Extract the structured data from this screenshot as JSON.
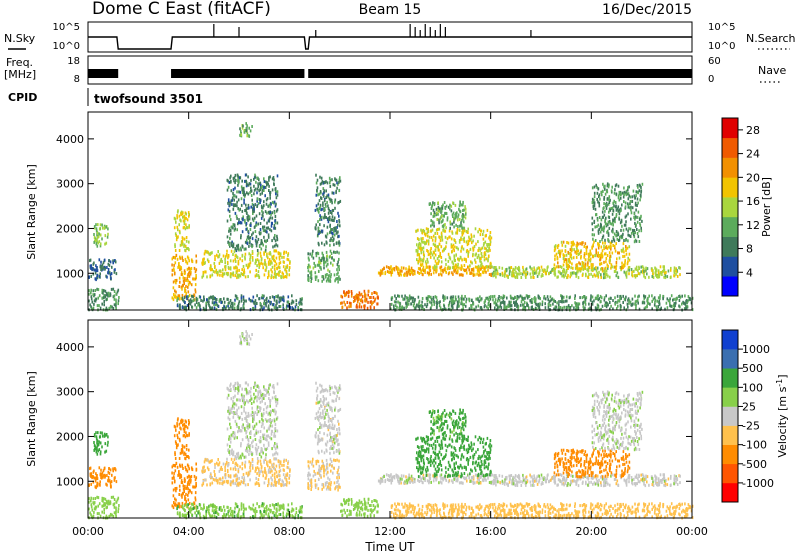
{
  "header": {
    "station": "Dome C East (fitACF)",
    "beam": "Beam 15",
    "date": "16/Dec/2015"
  },
  "status_panels": {
    "nsky": {
      "left_label": "N.Sky",
      "right_label": "N.Search",
      "ticks_left": [
        "10^5",
        "10^0"
      ],
      "ticks_right": [
        "10^5",
        "10^0"
      ]
    },
    "freq": {
      "left_label_1": "Freq.",
      "left_label_2": "[MHz]",
      "right_label": "Nave",
      "ticks_left": [
        "18",
        "8"
      ],
      "ticks_right": [
        "60",
        "0"
      ]
    },
    "cpid": {
      "label": "CPID",
      "program": "twofsound 3501"
    }
  },
  "colors": {
    "power": [
      "#0000ff",
      "#1f4fa0",
      "#3f7a5a",
      "#5cab5c",
      "#a9d63e",
      "#f2c400",
      "#f29000",
      "#f05a00",
      "#e00000"
    ],
    "velocity": [
      "#ff0000",
      "#ff5500",
      "#ff8c00",
      "#ffc14d",
      "#c8c8c8",
      "#88d04a",
      "#3aa63a",
      "#3a6fb0",
      "#1040d0"
    ]
  },
  "chart_data": [
    {
      "type": "heatmap",
      "title": "Power",
      "xlabel": "",
      "ylabel": "Slant Range [km]",
      "x_ticks": [
        "00:00",
        "04:00",
        "08:00",
        "12:00",
        "16:00",
        "20:00",
        "00:00"
      ],
      "xlim_hours": [
        0,
        24
      ],
      "y_ticks": [
        1000,
        2000,
        3000,
        4000
      ],
      "ylim_km": [
        180,
        4600
      ],
      "colorbar": {
        "label": "Power [dB]",
        "ticks": [
          4,
          8,
          12,
          16,
          20,
          24,
          28
        ],
        "range": [
          0,
          30
        ]
      },
      "echo_regions": [
        {
          "t0": 0.0,
          "t1": 1.2,
          "r0": 180,
          "r1": 650,
          "value": 10
        },
        {
          "t0": 0.0,
          "t1": 1.1,
          "r0": 850,
          "r1": 1300,
          "value": 6
        },
        {
          "t0": 0.2,
          "t1": 0.8,
          "r0": 1600,
          "r1": 2100,
          "value": 14
        },
        {
          "t0": 3.3,
          "t1": 4.3,
          "r0": 400,
          "r1": 1400,
          "value": 22
        },
        {
          "t0": 3.4,
          "t1": 4.0,
          "r0": 1500,
          "r1": 2400,
          "value": 18
        },
        {
          "t0": 3.5,
          "t1": 8.5,
          "r0": 180,
          "r1": 500,
          "value": 8
        },
        {
          "t0": 4.5,
          "t1": 8.0,
          "r0": 900,
          "r1": 1500,
          "value": 18
        },
        {
          "t0": 5.5,
          "t1": 7.5,
          "r0": 1500,
          "r1": 3200,
          "value": 8
        },
        {
          "t0": 6.0,
          "t1": 6.5,
          "r0": 4050,
          "r1": 4350,
          "value": 12
        },
        {
          "t0": 8.7,
          "t1": 10.0,
          "r0": 800,
          "r1": 1500,
          "value": 12
        },
        {
          "t0": 9.0,
          "t1": 10.0,
          "r0": 1600,
          "r1": 3200,
          "value": 8
        },
        {
          "t0": 10.0,
          "t1": 11.5,
          "r0": 200,
          "r1": 600,
          "value": 26
        },
        {
          "t0": 11.5,
          "t1": 16.0,
          "r0": 950,
          "r1": 1150,
          "value": 22
        },
        {
          "t0": 13.0,
          "t1": 16.0,
          "r0": 1100,
          "r1": 2000,
          "value": 18
        },
        {
          "t0": 13.5,
          "t1": 15.0,
          "r0": 2000,
          "r1": 2600,
          "value": 12
        },
        {
          "t0": 12.0,
          "t1": 24.0,
          "r0": 180,
          "r1": 500,
          "value": 10
        },
        {
          "t0": 16.0,
          "t1": 23.5,
          "r0": 900,
          "r1": 1150,
          "value": 16
        },
        {
          "t0": 18.5,
          "t1": 21.5,
          "r0": 1100,
          "r1": 1700,
          "value": 20
        },
        {
          "t0": 20.0,
          "t1": 22.0,
          "r0": 1700,
          "r1": 3000,
          "value": 10
        }
      ]
    },
    {
      "type": "heatmap",
      "title": "Velocity",
      "xlabel": "Time UT",
      "ylabel": "Slant Range [km]",
      "x_ticks": [
        "00:00",
        "04:00",
        "08:00",
        "12:00",
        "16:00",
        "20:00",
        "00:00"
      ],
      "xlim_hours": [
        0,
        24
      ],
      "y_ticks": [
        1000,
        2000,
        3000,
        4000
      ],
      "ylim_km": [
        180,
        4600
      ],
      "colorbar": {
        "label": "Velocity [m s^-1]",
        "ticks": [
          "1000",
          "500",
          "100",
          "25",
          "-25",
          "-100",
          "-500",
          "-1000"
        ]
      },
      "echo_regions": [
        {
          "t0": 0.0,
          "t1": 1.2,
          "r0": 180,
          "r1": 650,
          "value": 60
        },
        {
          "t0": 0.0,
          "t1": 1.1,
          "r0": 850,
          "r1": 1300,
          "value": -200
        },
        {
          "t0": 0.2,
          "t1": 0.8,
          "r0": 1600,
          "r1": 2100,
          "value": 150
        },
        {
          "t0": 3.3,
          "t1": 4.3,
          "r0": 400,
          "r1": 1400,
          "value": -250
        },
        {
          "t0": 3.4,
          "t1": 4.0,
          "r0": 1500,
          "r1": 2400,
          "value": -180
        },
        {
          "t0": 3.5,
          "t1": 8.5,
          "r0": 180,
          "r1": 500,
          "value": 80
        },
        {
          "t0": 4.5,
          "t1": 8.0,
          "r0": 900,
          "r1": 1500,
          "value": -40
        },
        {
          "t0": 5.5,
          "t1": 7.5,
          "r0": 1500,
          "r1": 3200,
          "value": 10
        },
        {
          "t0": 6.0,
          "t1": 6.5,
          "r0": 4050,
          "r1": 4350,
          "value": 5
        },
        {
          "t0": 8.7,
          "t1": 10.0,
          "r0": 800,
          "r1": 1500,
          "value": -30
        },
        {
          "t0": 9.0,
          "t1": 10.0,
          "r0": 1600,
          "r1": 3200,
          "value": 0
        },
        {
          "t0": 10.0,
          "t1": 11.5,
          "r0": 200,
          "r1": 600,
          "value": 60
        },
        {
          "t0": 11.5,
          "t1": 16.0,
          "r0": 950,
          "r1": 1150,
          "value": 0
        },
        {
          "t0": 13.0,
          "t1": 16.0,
          "r0": 1100,
          "r1": 2000,
          "value": 130
        },
        {
          "t0": 13.5,
          "t1": 15.0,
          "r0": 2000,
          "r1": 2600,
          "value": 120
        },
        {
          "t0": 12.0,
          "t1": 24.0,
          "r0": 180,
          "r1": 500,
          "value": -60
        },
        {
          "t0": 16.0,
          "t1": 23.5,
          "r0": 900,
          "r1": 1150,
          "value": 0
        },
        {
          "t0": 18.5,
          "t1": 21.5,
          "r0": 1100,
          "r1": 1700,
          "value": -250
        },
        {
          "t0": 20.0,
          "t1": 22.0,
          "r0": 1700,
          "r1": 3000,
          "value": 10
        }
      ]
    }
  ]
}
